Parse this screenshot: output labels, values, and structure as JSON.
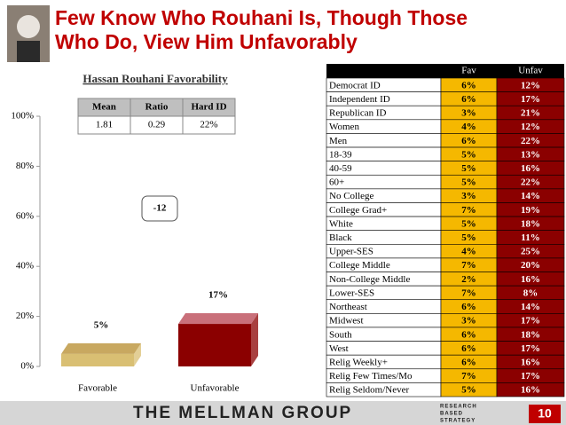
{
  "header": {
    "title_lines": [
      "Few Know Who Rouhani Is, Though Those",
      "Who Do, View Him Unfavorably"
    ]
  },
  "chart_data": {
    "type": "bar",
    "title": "Hassan Rouhani Favorability",
    "categories": [
      "Favorable",
      "Unfavorable"
    ],
    "values": [
      5,
      17
    ],
    "value_labels": [
      "5%",
      "17%"
    ],
    "colors": [
      "#d9bf73",
      "#8b0000"
    ],
    "top_colors": [
      "#c8a860",
      "#c9707a"
    ],
    "ylim": [
      0,
      100
    ],
    "yticks": [
      {
        "value": 0,
        "label": "0%"
      },
      {
        "value": 20,
        "label": "20%"
      },
      {
        "value": 40,
        "label": "40%"
      },
      {
        "value": 60,
        "label": "60%"
      },
      {
        "value": 80,
        "label": "80%"
      },
      {
        "value": 100,
        "label": "100%"
      }
    ],
    "annotation": "-12",
    "stats_table": {
      "columns": [
        "Mean",
        "Ratio",
        "Hard ID"
      ],
      "values": [
        "1.81",
        "0.29",
        "22%"
      ]
    }
  },
  "table": {
    "columns": [
      "Fav",
      "Unfav"
    ],
    "rows": [
      [
        "Democrat ID",
        "6%",
        "12%"
      ],
      [
        "Independent ID",
        "6%",
        "17%"
      ],
      [
        "Republican ID",
        "3%",
        "21%"
      ],
      [
        "Women",
        "4%",
        "12%"
      ],
      [
        "Men",
        "6%",
        "22%"
      ],
      [
        "18-39",
        "5%",
        "13%"
      ],
      [
        "40-59",
        "5%",
        "16%"
      ],
      [
        "60+",
        "5%",
        "22%"
      ],
      [
        "No College",
        "3%",
        "14%"
      ],
      [
        "College Grad+",
        "7%",
        "19%"
      ],
      [
        "White",
        "5%",
        "18%"
      ],
      [
        "Black",
        "5%",
        "11%"
      ],
      [
        "Upper-SES",
        "4%",
        "25%"
      ],
      [
        "College Middle",
        "7%",
        "20%"
      ],
      [
        "Non-College Middle",
        "2%",
        "16%"
      ],
      [
        "Lower-SES",
        "7%",
        "8%"
      ],
      [
        "Northeast",
        "6%",
        "14%"
      ],
      [
        "Midwest",
        "3%",
        "17%"
      ],
      [
        "South",
        "6%",
        "18%"
      ],
      [
        "West",
        "6%",
        "17%"
      ],
      [
        "Relig Weekly+",
        "6%",
        "16%"
      ],
      [
        "Relig Few Times/Mo",
        "7%",
        "17%"
      ],
      [
        "Relig Seldom/Never",
        "5%",
        "16%"
      ]
    ]
  },
  "footer": {
    "brand": "THE MELLMAN GROUP",
    "tagline": [
      "RESEARCH",
      "BASED",
      "STRATEGY"
    ],
    "page": "10"
  }
}
